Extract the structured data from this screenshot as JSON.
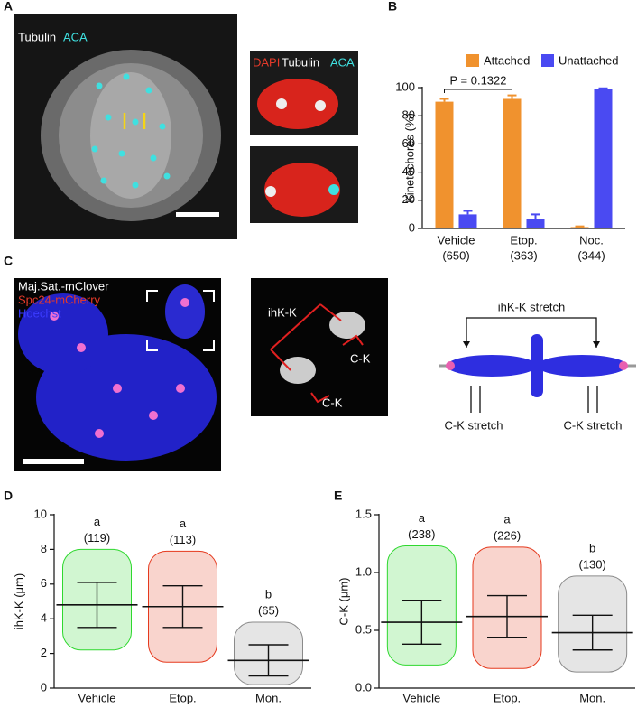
{
  "panel_labels": [
    "A",
    "B",
    "C",
    "D",
    "E"
  ],
  "panel_a": {
    "labels": [
      "Tubulin",
      "ACA"
    ],
    "inset_labels": [
      "DAPI",
      "Tubulin",
      "ACA"
    ]
  },
  "panel_c": {
    "image_labels": [
      "Maj.Sat.-mClover",
      "Spc24-mCherry",
      "Hoechst"
    ],
    "inset_labels": [
      "ihK-K",
      "C-K",
      "C-K"
    ],
    "diagram": {
      "top": "ihK-K stretch",
      "left": "C-K stretch",
      "right": "C-K stretch"
    }
  },
  "chart_data": [
    {
      "type": "bar",
      "ylabel": "Kinetochores (%)",
      "categories": [
        "Vehicle",
        "Etop.",
        "Noc."
      ],
      "category_counts": [
        "(650)",
        "(363)",
        "(344)"
      ],
      "ylim": [
        0,
        100
      ],
      "yticks": [
        0,
        20,
        40,
        60,
        80,
        100
      ],
      "legend": "top",
      "annotation": "P = 0.1322",
      "series": [
        {
          "name": "Attached",
          "color": "#f0922e",
          "values": [
            90,
            92,
            1
          ],
          "errors": [
            2,
            2.5,
            0.5
          ]
        },
        {
          "name": "Unattached",
          "color": "#4a4af2",
          "values": [
            10,
            7,
            99
          ],
          "errors": [
            2.5,
            3,
            0.5
          ]
        }
      ]
    },
    {
      "type": "strip",
      "ylabel": "ihK-K (μm)",
      "categories": [
        "Vehicle",
        "Etop.",
        "Mon."
      ],
      "group_letters": [
        "a",
        "a",
        "b"
      ],
      "counts": [
        "(119)",
        "(113)",
        "(65)"
      ],
      "colors": [
        "#2fd82f",
        "#e5391d",
        "#8a8a8a"
      ],
      "means": [
        4.8,
        4.7,
        1.6
      ],
      "sd": [
        1.3,
        1.2,
        0.9
      ],
      "min": [
        2.2,
        1.5,
        0.2
      ],
      "max": [
        8.0,
        7.9,
        3.8
      ],
      "ylim": [
        0,
        10
      ],
      "yticks": [
        0,
        2,
        4,
        6,
        8,
        10
      ]
    },
    {
      "type": "strip",
      "ylabel": "C-K (μm)",
      "categories": [
        "Vehicle",
        "Etop.",
        "Mon."
      ],
      "group_letters": [
        "a",
        "a",
        "b"
      ],
      "counts": [
        "(238)",
        "(226)",
        "(130)"
      ],
      "colors": [
        "#2fd82f",
        "#e5391d",
        "#8a8a8a"
      ],
      "means": [
        0.57,
        0.62,
        0.48
      ],
      "sd": [
        0.19,
        0.18,
        0.15
      ],
      "min": [
        0.2,
        0.17,
        0.14
      ],
      "max": [
        1.23,
        1.22,
        0.97
      ],
      "ylim": [
        0,
        1.5
      ],
      "yticks": [
        {
          "value": 0,
          "label": "0.0"
        },
        {
          "value": 0.5,
          "label": "0.5"
        },
        {
          "value": 1,
          "label": "1.0"
        },
        {
          "value": 1.5,
          "label": "1.5"
        }
      ]
    }
  ]
}
